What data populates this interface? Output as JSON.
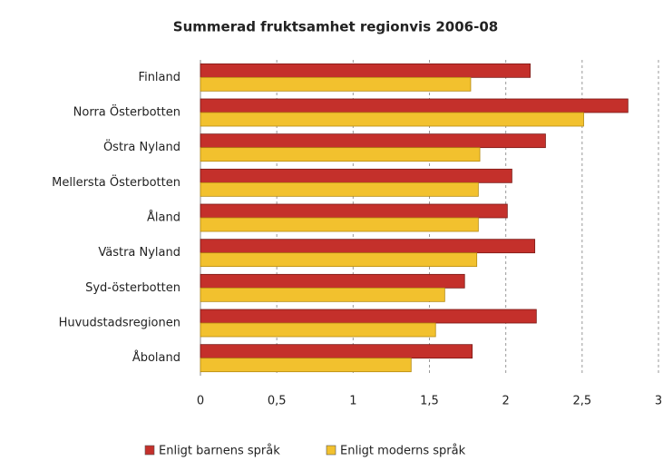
{
  "chart_data": {
    "type": "hbar",
    "title": "Summerad fruktsamhet regionvis 2006-08",
    "categories": [
      "Finland",
      "Norra Österbotten",
      "Östra Nyland",
      "Mellersta Österbotten",
      "Åland",
      "Västra Nyland",
      "Syd-österbotten",
      "Huvudstadsregionen",
      "Åboland"
    ],
    "series": [
      {
        "name": "Enligt barnens språk",
        "color": "#c4302b",
        "values": [
          2.16,
          2.8,
          2.26,
          2.04,
          2.01,
          2.19,
          1.73,
          2.2,
          1.78
        ]
      },
      {
        "name": "Enligt moderns språk",
        "color": "#f2c12e",
        "values": [
          1.77,
          2.51,
          1.83,
          1.82,
          1.82,
          1.81,
          1.6,
          1.54,
          1.38
        ]
      }
    ],
    "xlim": [
      0,
      3
    ],
    "xticks": [
      0,
      {
        "value": 0.5,
        "label": "0,5"
      },
      1,
      {
        "value": 1.5,
        "label": "1,5"
      },
      2,
      {
        "value": 2.5,
        "label": "2,5"
      },
      3
    ],
    "grid": true,
    "legend": "bottom"
  }
}
